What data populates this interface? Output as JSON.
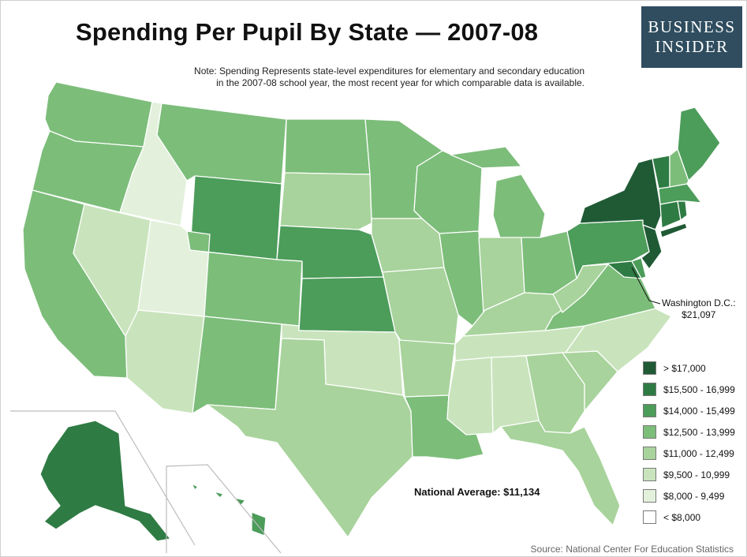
{
  "title": "Spending Per Pupil By State — 2007-08",
  "note": [
    "Note: Spending Represents state-level expenditures for elementary and secondary education",
    "in the 2007-08 school year, the most recent year for which comparable data is available."
  ],
  "logo": {
    "line1": "BUSINESS",
    "line2": "INSIDER"
  },
  "dc_callout": {
    "name": "Washington D.C.:",
    "value": "$21,097"
  },
  "national_average": "National Average: $11,134",
  "source": "Source: National Center For Education Statistics",
  "legend": [
    {
      "label": "> $17,000",
      "color": "#1f5a35"
    },
    {
      "label": "$15,500 - 16,999",
      "color": "#2f7b44"
    },
    {
      "label": "$14,000 - 15,499",
      "color": "#4c9c5a"
    },
    {
      "label": "$12,500 - 13,999",
      "color": "#7cbd7a"
    },
    {
      "label": "$11,000 - 12,499",
      "color": "#a8d39c"
    },
    {
      "label": "$9,500 - 10,999",
      "color": "#c9e4bc"
    },
    {
      "label": "$8,000 - 9,499",
      "color": "#e3f1dc"
    },
    {
      "label": "< $8,000",
      "color": "#ffffff"
    }
  ],
  "map": {
    "border_color": "#ffffff",
    "states": {
      "WA": 4,
      "OR": 4,
      "CA": 4,
      "NV": 2,
      "ID": 1,
      "UT": 1,
      "AZ": 2,
      "MT": 4,
      "WY": 5,
      "CO": 4,
      "NM": 4,
      "ND": 4,
      "SD": 3,
      "NE": 5,
      "KS": 5,
      "OK": 2,
      "TX": 3,
      "MN": 4,
      "IA": 3,
      "MO": 3,
      "AR": 3,
      "LA": 4,
      "WI": 4,
      "IL": 4,
      "MI": 4,
      "IN": 3,
      "OH": 4,
      "KY": 3,
      "TN": 2,
      "MS": 2,
      "AL": 2,
      "GA": 3,
      "FL": 3,
      "SC": 3,
      "NC": 2,
      "VA": 4,
      "WV": 3,
      "PA": 5,
      "NY": 7,
      "NJ": 7,
      "DE": 5,
      "MD": 6,
      "CT": 6,
      "RI": 6,
      "MA": 5,
      "VT": 6,
      "NH": 4,
      "ME": 5,
      "AK": 6,
      "HI": 5
    }
  }
}
